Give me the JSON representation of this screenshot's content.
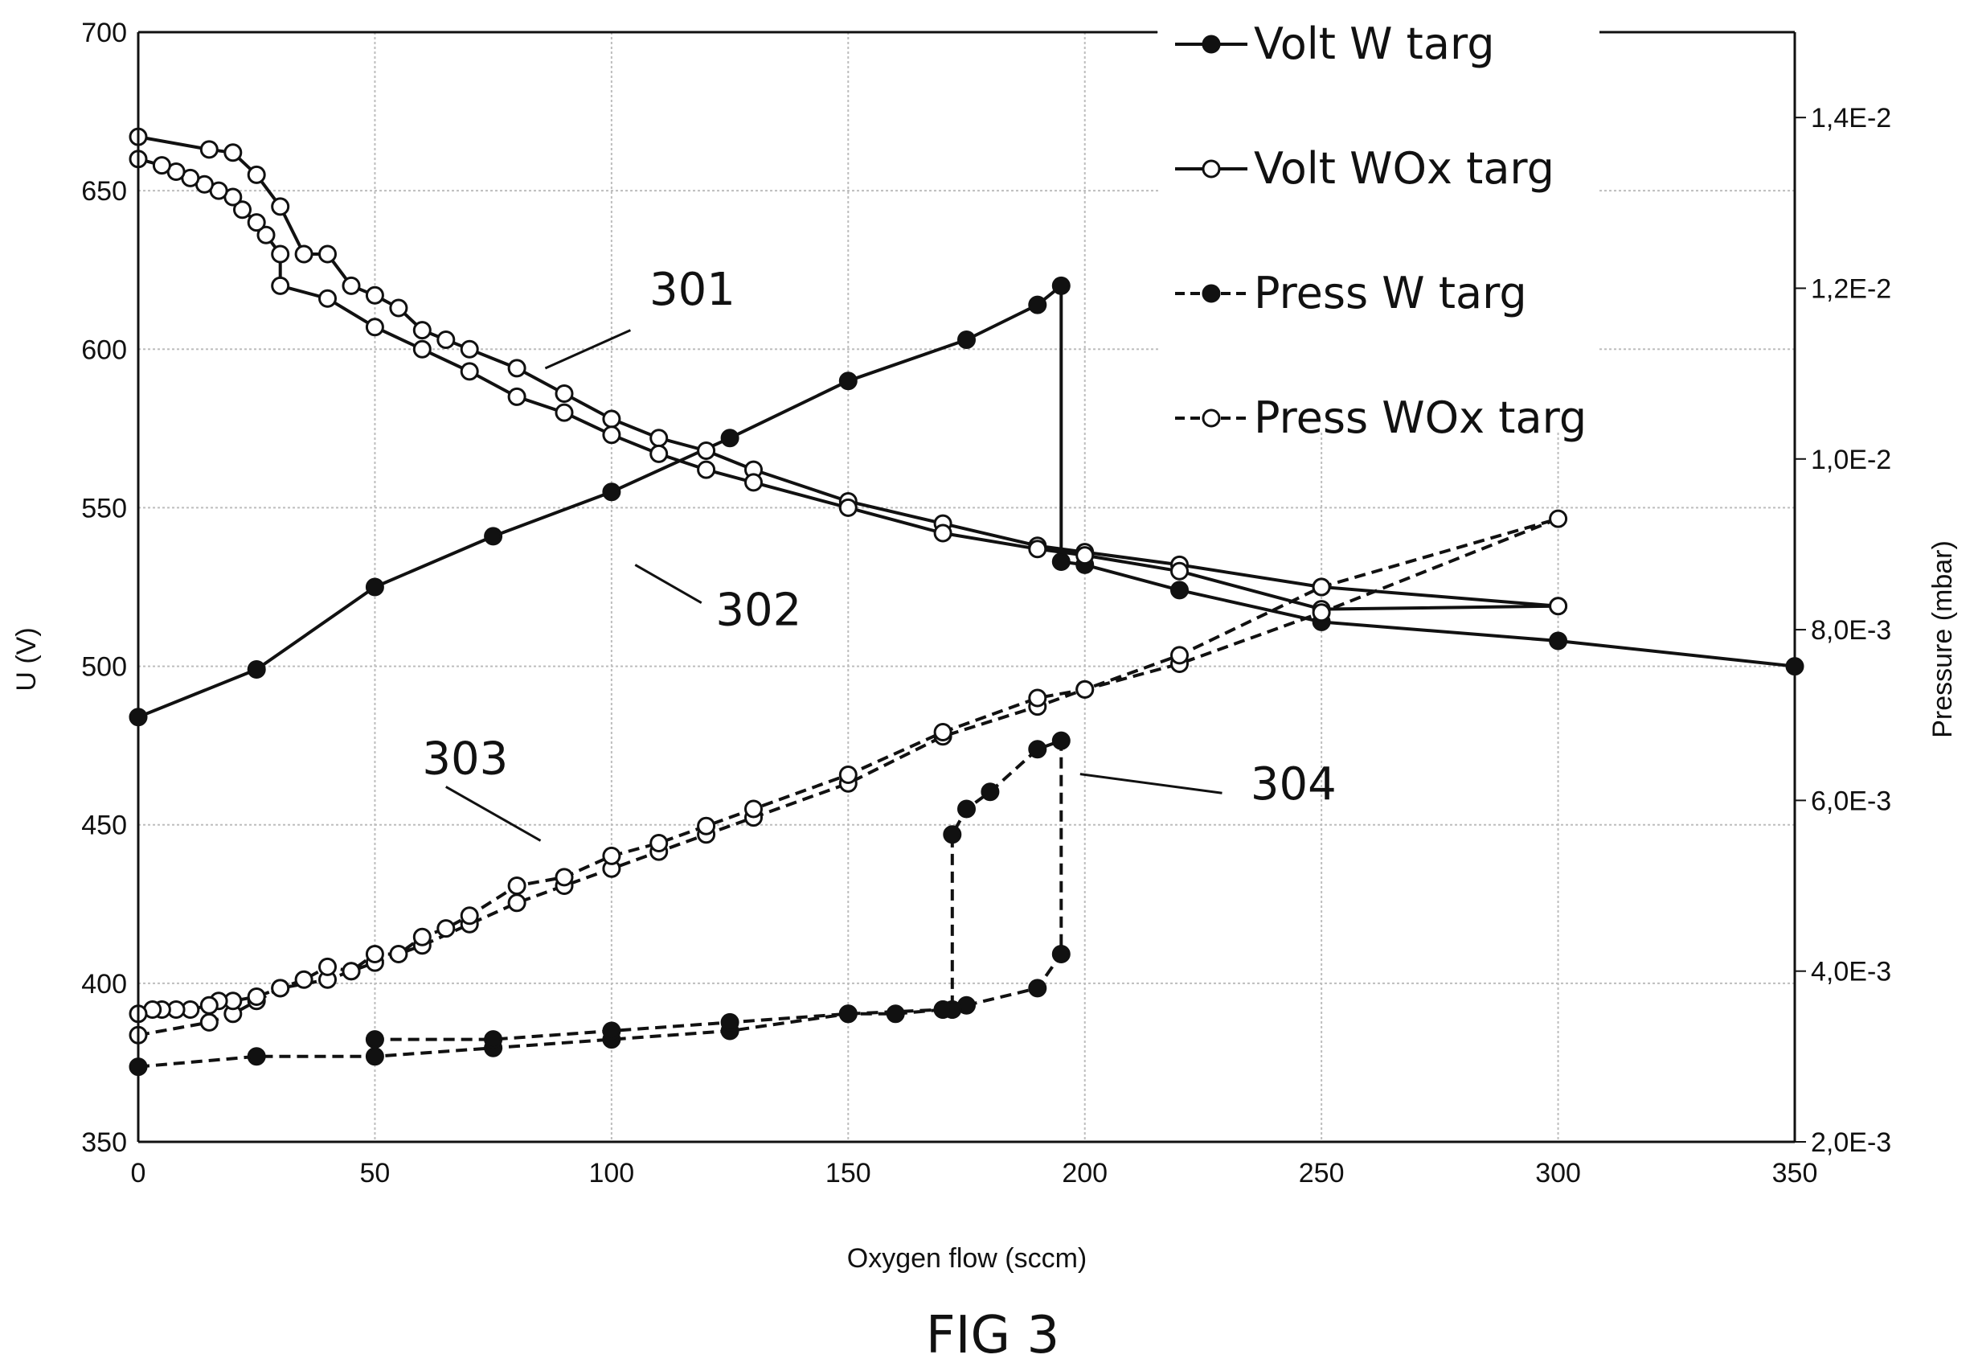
{
  "chart_data": {
    "type": "line",
    "caption": "FIG 3",
    "xlabel": "Oxygen flow (sccm)",
    "ylabel": "U (V)",
    "y2label": "Pressure (mbar)",
    "xlim": [
      0,
      350
    ],
    "ylim": [
      350,
      700
    ],
    "y2lim": [
      0.002,
      0.015
    ],
    "x_ticks": [
      "0",
      "50",
      "100",
      "150",
      "200",
      "250",
      "300",
      "350"
    ],
    "y_ticks": [
      "350",
      "400",
      "450",
      "500",
      "550",
      "600",
      "650",
      "700"
    ],
    "y2_ticks": [
      "2,0E-3",
      "4,0E-3",
      "6,0E-3",
      "8,0E-3",
      "1,0E-2",
      "1,2E-2",
      "1,4E-2"
    ],
    "grid": true,
    "legend_position": "top-right",
    "series": [
      {
        "name": "Volt W targ",
        "axis": "left",
        "marker": "filled",
        "dash": "solid",
        "points": [
          [
            0,
            484
          ],
          [
            25,
            499
          ],
          [
            50,
            525
          ],
          [
            75,
            541
          ],
          [
            100,
            555
          ],
          [
            125,
            572
          ],
          [
            150,
            590
          ],
          [
            175,
            603
          ],
          [
            190,
            614
          ],
          [
            195,
            620
          ],
          [
            195,
            533
          ],
          [
            200,
            532
          ],
          [
            220,
            524
          ],
          [
            250,
            514
          ],
          [
            300,
            508
          ],
          [
            350,
            500
          ]
        ]
      },
      {
        "name": "Volt WOx targ",
        "axis": "left",
        "marker": "open",
        "dash": "solid",
        "points": [
          [
            0,
            667
          ],
          [
            15,
            663
          ],
          [
            20,
            662
          ],
          [
            25,
            655
          ],
          [
            30,
            645
          ],
          [
            35,
            630
          ],
          [
            40,
            630
          ],
          [
            45,
            620
          ],
          [
            50,
            617
          ],
          [
            55,
            613
          ],
          [
            60,
            606
          ],
          [
            65,
            603
          ],
          [
            70,
            600
          ],
          [
            80,
            594
          ],
          [
            90,
            586
          ],
          [
            100,
            578
          ],
          [
            110,
            572
          ],
          [
            120,
            568
          ],
          [
            130,
            562
          ],
          [
            150,
            552
          ],
          [
            170,
            545
          ],
          [
            190,
            538
          ],
          [
            200,
            536
          ],
          [
            220,
            532
          ],
          [
            250,
            525
          ],
          [
            300,
            519
          ],
          [
            300,
            519
          ],
          [
            250,
            518
          ],
          [
            220,
            530
          ],
          [
            200,
            535
          ],
          [
            190,
            537
          ],
          [
            170,
            542
          ],
          [
            150,
            550
          ],
          [
            130,
            558
          ],
          [
            120,
            562
          ],
          [
            110,
            567
          ],
          [
            100,
            573
          ],
          [
            90,
            580
          ],
          [
            80,
            585
          ],
          [
            70,
            593
          ],
          [
            60,
            600
          ],
          [
            50,
            607
          ],
          [
            40,
            616
          ],
          [
            30,
            620
          ],
          [
            30,
            630
          ],
          [
            27,
            636
          ],
          [
            25,
            640
          ],
          [
            22,
            644
          ],
          [
            20,
            648
          ],
          [
            17,
            650
          ],
          [
            14,
            652
          ],
          [
            11,
            654
          ],
          [
            8,
            656
          ],
          [
            5,
            658
          ],
          [
            0,
            660
          ]
        ]
      },
      {
        "name": "Press W targ",
        "axis": "right",
        "marker": "filled",
        "dash": "dashed",
        "points": [
          [
            0,
            0.00288
          ],
          [
            25,
            0.003
          ],
          [
            50,
            0.003
          ],
          [
            75,
            0.0031
          ],
          [
            100,
            0.0032
          ],
          [
            125,
            0.0033
          ],
          [
            150,
            0.0035
          ],
          [
            160,
            0.0035
          ],
          [
            170,
            0.00355
          ],
          [
            172,
            0.00355
          ],
          [
            175,
            0.0036
          ],
          [
            190,
            0.0038
          ],
          [
            195,
            0.0042
          ],
          [
            195,
            0.0067
          ],
          [
            190,
            0.0066
          ],
          [
            180,
            0.0061
          ],
          [
            175,
            0.0059
          ],
          [
            172,
            0.0056
          ],
          [
            172,
            0.00355
          ],
          [
            170,
            0.00355
          ],
          [
            150,
            0.0035
          ],
          [
            125,
            0.0034
          ],
          [
            100,
            0.0033
          ],
          [
            75,
            0.0032
          ],
          [
            50,
            0.0032
          ]
        ]
      },
      {
        "name": "Press WOx targ",
        "axis": "right",
        "marker": "open",
        "dash": "dashed",
        "points": [
          [
            0,
            0.00325
          ],
          [
            15,
            0.0034
          ],
          [
            20,
            0.0035
          ],
          [
            25,
            0.00365
          ],
          [
            30,
            0.0038
          ],
          [
            40,
            0.0039
          ],
          [
            45,
            0.004
          ],
          [
            50,
            0.0041
          ],
          [
            60,
            0.0043
          ],
          [
            70,
            0.00455
          ],
          [
            80,
            0.0048
          ],
          [
            90,
            0.005
          ],
          [
            100,
            0.0052
          ],
          [
            110,
            0.0054
          ],
          [
            120,
            0.0056
          ],
          [
            130,
            0.0058
          ],
          [
            150,
            0.0062
          ],
          [
            170,
            0.00675
          ],
          [
            190,
            0.0071
          ],
          [
            200,
            0.0073
          ],
          [
            220,
            0.0076
          ],
          [
            250,
            0.0082
          ],
          [
            300,
            0.0093
          ],
          [
            250,
            0.0085
          ],
          [
            220,
            0.0077
          ],
          [
            200,
            0.0073
          ],
          [
            190,
            0.0072
          ],
          [
            170,
            0.0068
          ],
          [
            150,
            0.0063
          ],
          [
            130,
            0.0059
          ],
          [
            120,
            0.0057
          ],
          [
            110,
            0.0055
          ],
          [
            100,
            0.00535
          ],
          [
            90,
            0.0051
          ],
          [
            80,
            0.005
          ],
          [
            70,
            0.00465
          ],
          [
            65,
            0.0045
          ],
          [
            60,
            0.0044
          ],
          [
            55,
            0.0042
          ],
          [
            50,
            0.0042
          ],
          [
            45,
            0.004
          ],
          [
            40,
            0.00405
          ],
          [
            35,
            0.0039
          ],
          [
            30,
            0.0038
          ],
          [
            25,
            0.0037
          ],
          [
            20,
            0.00365
          ],
          [
            17,
            0.00365
          ],
          [
            15,
            0.0036
          ],
          [
            11,
            0.00355
          ],
          [
            8,
            0.00355
          ],
          [
            5,
            0.00355
          ],
          [
            3,
            0.00355
          ],
          [
            0,
            0.0035
          ]
        ]
      }
    ],
    "annotations": [
      {
        "label": "301",
        "text_at": [
          108,
          614
        ],
        "line_from": [
          104,
          606
        ],
        "line_to": [
          86,
          594
        ]
      },
      {
        "label": "302",
        "text_at": [
          122,
          513
        ],
        "line_from": [
          119,
          520
        ],
        "line_to": [
          105,
          532
        ]
      },
      {
        "label": "303",
        "text_at": [
          60,
          466
        ],
        "line_from": [
          65,
          462
        ],
        "line_to": [
          85,
          445
        ]
      },
      {
        "label": "304",
        "text_at": [
          235,
          458
        ],
        "line_from": [
          229,
          460
        ],
        "line_to": [
          199,
          466
        ]
      }
    ]
  }
}
